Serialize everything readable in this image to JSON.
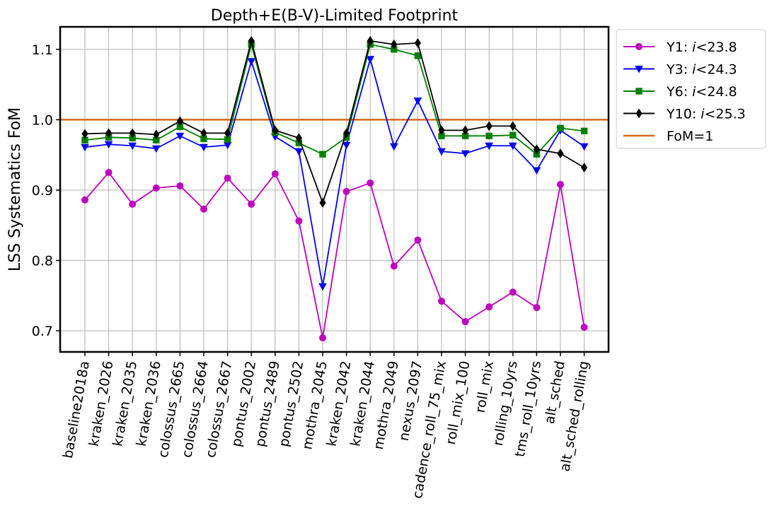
{
  "chart_data": {
    "type": "line",
    "title": "Depth+E(B-V)-Limited Footprint",
    "xlabel": "",
    "ylabel": "LSS Systematics FoM",
    "ylim": [
      0.67,
      1.132
    ],
    "yticks": [
      "0.7",
      "0.8",
      "0.9",
      "1.0",
      "1.1"
    ],
    "grid": true,
    "legend_placement": "outside-top-right",
    "categories": [
      "baseline2018a",
      "kraken_2026",
      "kraken_2035",
      "kraken_2036",
      "colossus_2665",
      "colossus_2664",
      "colossus_2667",
      "pontus_2002",
      "pontus_2489",
      "pontus_2502",
      "mothra_2045",
      "kraken_2042",
      "kraken_2044",
      "mothra_2049",
      "nexus_2097",
      "cadence_roll_75_mix",
      "roll_mix_100",
      "roll_mix",
      "rolling_10yrs",
      "tms_roll_10yrs",
      "alt_sched",
      "alt_sched_rolling"
    ],
    "series": [
      {
        "name_prefix": "Y1: ",
        "name_italic": "i",
        "name_suffix": "<23.8",
        "color": "#bf00bf",
        "marker": "circle",
        "values": [
          0.886,
          0.925,
          0.88,
          0.903,
          0.906,
          0.873,
          0.917,
          0.88,
          0.923,
          0.856,
          0.69,
          0.898,
          0.91,
          0.792,
          0.829,
          0.742,
          0.713,
          0.734,
          0.755,
          0.733,
          0.908,
          0.705
        ]
      },
      {
        "name_prefix": "Y3: ",
        "name_italic": "i",
        "name_suffix": "<24.3",
        "color": "#0000ff",
        "marker": "triangle-down",
        "values": [
          0.961,
          0.965,
          0.963,
          0.959,
          0.977,
          0.961,
          0.964,
          1.083,
          0.976,
          0.955,
          0.763,
          0.964,
          1.086,
          0.962,
          1.027,
          0.955,
          0.952,
          0.963,
          0.963,
          0.928,
          0.985,
          0.962
        ]
      },
      {
        "name_prefix": "Y6: ",
        "name_italic": "i",
        "name_suffix": "<24.8",
        "color": "#008000",
        "marker": "square",
        "values": [
          0.971,
          0.975,
          0.974,
          0.971,
          0.99,
          0.973,
          0.972,
          1.107,
          0.982,
          0.967,
          0.951,
          0.975,
          1.107,
          1.1,
          1.091,
          0.977,
          0.977,
          0.977,
          0.978,
          0.951,
          0.988,
          0.984
        ]
      },
      {
        "name_prefix": "Y10: ",
        "name_italic": "i",
        "name_suffix": "<25.3",
        "color": "#000000",
        "marker": "diamond",
        "values": [
          0.98,
          0.981,
          0.981,
          0.979,
          0.998,
          0.981,
          0.981,
          1.112,
          0.985,
          0.974,
          0.882,
          0.981,
          1.112,
          1.107,
          1.109,
          0.985,
          0.985,
          0.991,
          0.991,
          0.958,
          0.952,
          0.932
        ]
      }
    ],
    "reference_line": {
      "name": "FoM=1",
      "value": 1.0,
      "color": "#d2691e"
    }
  }
}
